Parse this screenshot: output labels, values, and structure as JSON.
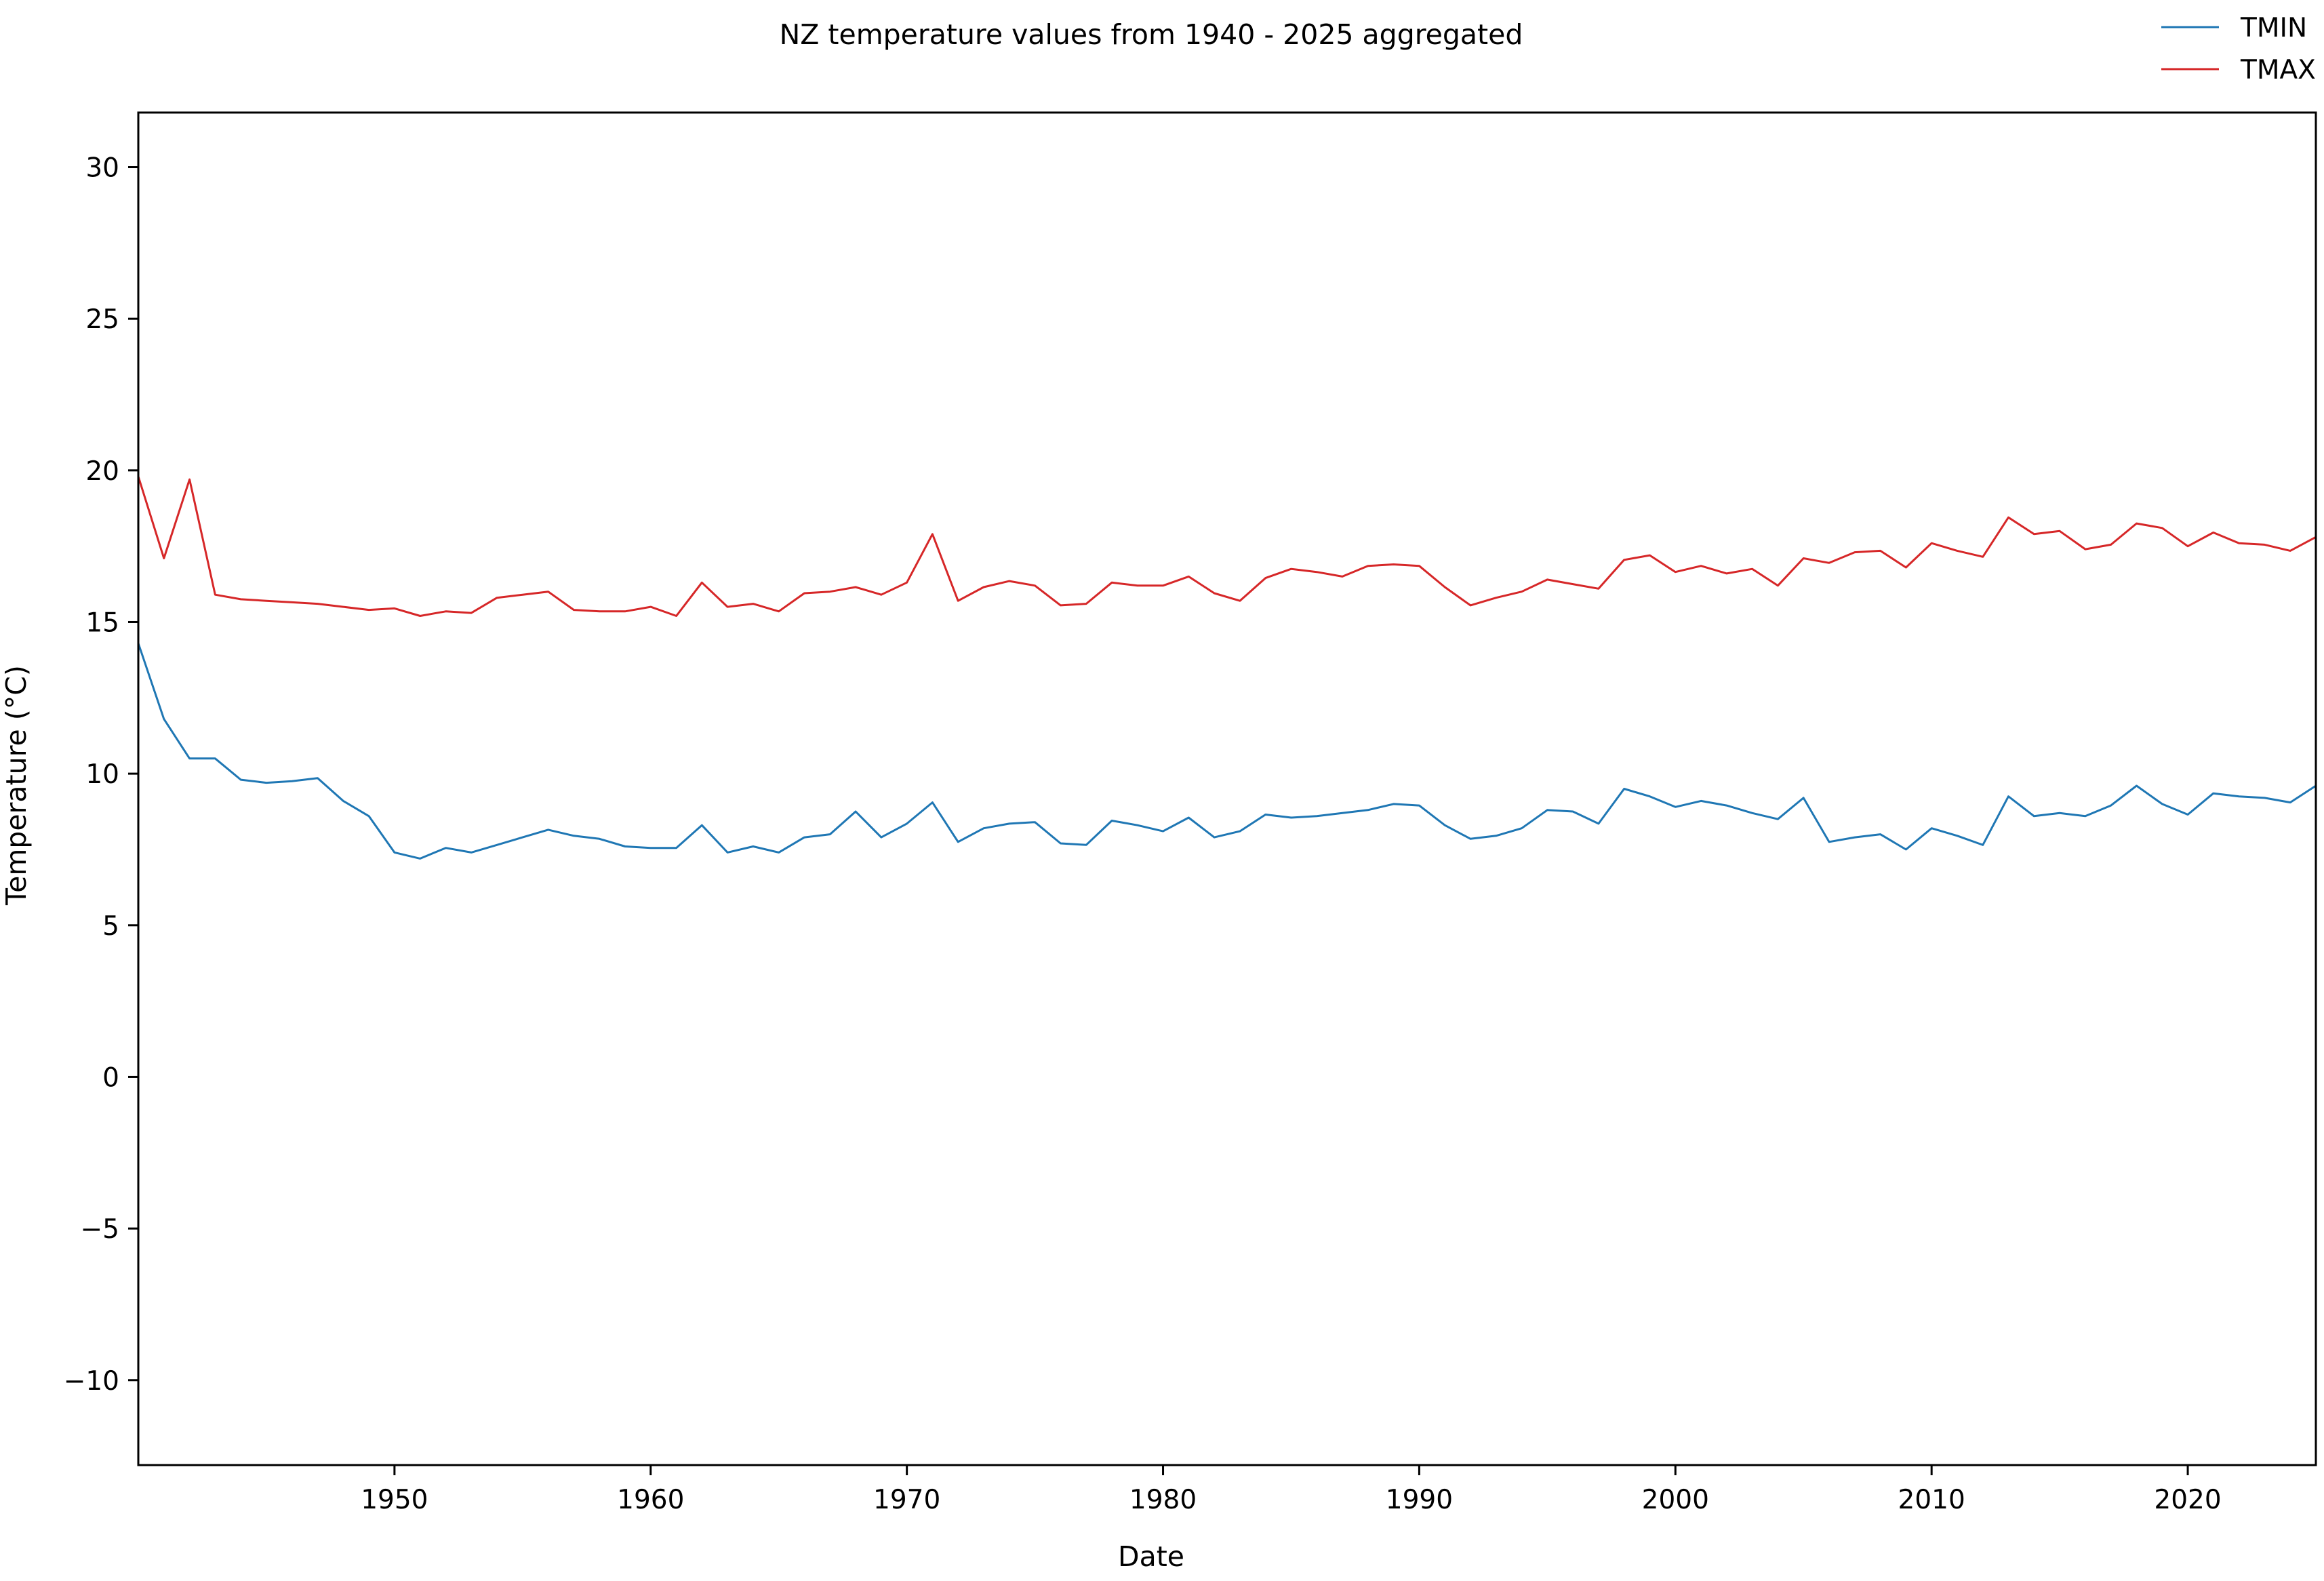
{
  "chart_data": {
    "type": "line",
    "title": "NZ temperature values from 1940 - 2025 aggregated",
    "xlabel": "Date",
    "ylabel": "Temperature (°C)",
    "xlim": [
      1940,
      2025
    ],
    "ylim": [
      -12.8,
      31.8
    ],
    "x_ticks": [
      1950,
      1960,
      1970,
      1980,
      1990,
      2000,
      2010,
      2020
    ],
    "y_ticks": [
      -10,
      -5,
      0,
      5,
      10,
      15,
      20,
      25,
      30
    ],
    "y_tick_labels": [
      "−10",
      "−5",
      "0",
      "5",
      "10",
      "15",
      "20",
      "25",
      "30"
    ],
    "grid": false,
    "legend": "top-right",
    "x": [
      1940,
      1941,
      1942,
      1943,
      1944,
      1945,
      1946,
      1947,
      1948,
      1949,
      1950,
      1951,
      1952,
      1953,
      1954,
      1955,
      1956,
      1957,
      1958,
      1959,
      1960,
      1961,
      1962,
      1963,
      1964,
      1965,
      1966,
      1967,
      1968,
      1969,
      1970,
      1971,
      1972,
      1973,
      1974,
      1975,
      1976,
      1977,
      1978,
      1979,
      1980,
      1981,
      1982,
      1983,
      1984,
      1985,
      1986,
      1987,
      1988,
      1989,
      1990,
      1991,
      1992,
      1993,
      1994,
      1995,
      1996,
      1997,
      1998,
      1999,
      2000,
      2001,
      2002,
      2003,
      2004,
      2005,
      2006,
      2007,
      2008,
      2009,
      2010,
      2011,
      2012,
      2013,
      2014,
      2015,
      2016,
      2017,
      2018,
      2019,
      2020,
      2021,
      2022,
      2023,
      2024,
      2025
    ],
    "series": [
      {
        "name": "TMIN",
        "color": "#1f77b4",
        "values": [
          14.3,
          11.8,
          10.5,
          10.5,
          9.8,
          9.7,
          9.75,
          9.85,
          9.1,
          8.6,
          7.4,
          7.2,
          7.55,
          7.4,
          7.65,
          7.9,
          8.15,
          7.95,
          7.85,
          7.6,
          7.55,
          7.55,
          8.3,
          7.4,
          7.6,
          7.4,
          7.9,
          8.0,
          8.75,
          7.9,
          8.35,
          9.05,
          7.75,
          8.2,
          8.35,
          8.4,
          7.7,
          7.65,
          8.45,
          8.3,
          8.1,
          8.55,
          7.9,
          8.1,
          8.65,
          8.55,
          8.6,
          8.7,
          8.8,
          9.0,
          8.95,
          8.3,
          7.85,
          7.95,
          8.2,
          8.8,
          8.75,
          8.35,
          9.5,
          9.25,
          8.9,
          9.1,
          8.95,
          8.7,
          8.5,
          9.2,
          7.75,
          7.9,
          8.0,
          7.5,
          8.2,
          7.95,
          7.65,
          9.25,
          8.6,
          8.7,
          8.6,
          8.95,
          9.6,
          9.0,
          8.65,
          9.35,
          9.25,
          9.2,
          9.05,
          9.6
        ]
      },
      {
        "name": "TMAX",
        "color": "#d62728",
        "values": [
          19.8,
          17.1,
          19.7,
          15.9,
          15.75,
          15.7,
          15.65,
          15.6,
          15.5,
          15.4,
          15.45,
          15.2,
          15.35,
          15.3,
          15.8,
          15.9,
          16.0,
          15.4,
          15.35,
          15.35,
          15.5,
          15.2,
          16.3,
          15.5,
          15.6,
          15.35,
          15.95,
          16.0,
          16.15,
          15.9,
          16.3,
          17.9,
          15.7,
          16.15,
          16.35,
          16.2,
          15.55,
          15.6,
          16.3,
          16.2,
          16.2,
          16.5,
          15.95,
          15.7,
          16.45,
          16.75,
          16.65,
          16.5,
          16.85,
          16.9,
          16.85,
          16.15,
          15.55,
          15.8,
          16.0,
          16.4,
          16.25,
          16.1,
          17.05,
          17.2,
          16.65,
          16.85,
          16.6,
          16.75,
          16.2,
          17.1,
          16.95,
          17.3,
          17.35,
          16.8,
          17.6,
          17.35,
          17.15,
          18.45,
          17.9,
          18.0,
          17.4,
          17.55,
          18.25,
          18.1,
          17.5,
          17.95,
          17.6,
          17.55,
          17.35,
          17.8
        ]
      }
    ]
  }
}
